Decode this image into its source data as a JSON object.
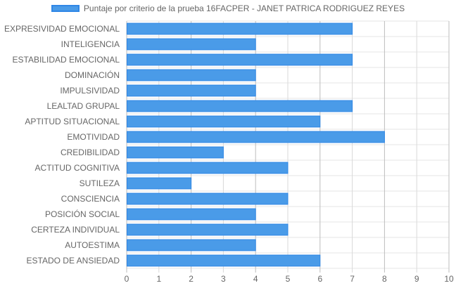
{
  "chart_data": {
    "type": "bar",
    "orientation": "horizontal",
    "categories": [
      "EXPRESIVIDAD EMOCIONAL",
      "INTELIGENCIA",
      "ESTABILIDAD EMOCIONAL",
      "DOMINACIÓN",
      "IMPULSIVIDAD",
      "LEALTAD GRUPAL",
      "APTITUD SITUACIONAL",
      "EMOTIVIDAD",
      "CREDIBILIDAD",
      "ACTITUD COGNITIVA",
      "SUTILEZA",
      "CONSCIENCIA",
      "POSICIÓN SOCIAL",
      "CERTEZA INDIVIDUAL",
      "AUTOESTIMA",
      "ESTADO DE ANSIEDAD"
    ],
    "series": [
      {
        "name": "Puntaje por criterio de la prueba 16FACPER - JANET PATRICA RODRIGUEZ REYES",
        "values": [
          7,
          4,
          7,
          4,
          4,
          7,
          6,
          8,
          3,
          5,
          2,
          5,
          4,
          5,
          4,
          6
        ]
      }
    ],
    "xlim": [
      0,
      10
    ],
    "xticks": [
      "0",
      "1",
      "2",
      "3",
      "4",
      "5",
      "6",
      "7",
      "8",
      "9",
      "10"
    ],
    "grid": true,
    "legend_position": "top",
    "colors": {
      "bar_fill": "#4a9be8",
      "bar_border": "#2f87e6",
      "grid": "#e6e6e6",
      "axis_text": "#666666"
    }
  }
}
